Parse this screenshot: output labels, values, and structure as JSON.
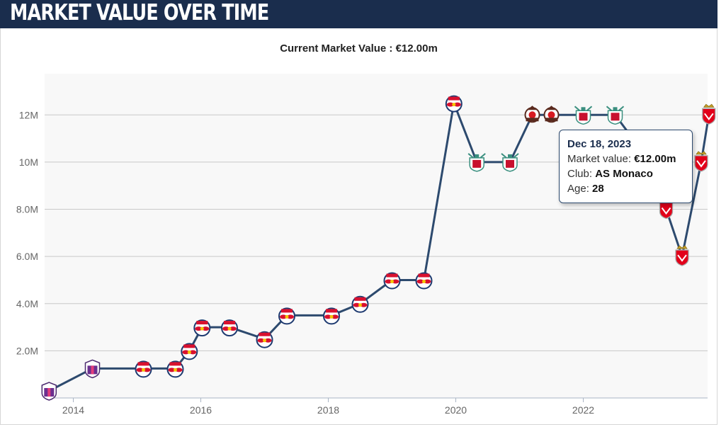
{
  "header": {
    "title": "MARKET VALUE OVER TIME"
  },
  "subtitle": "Current Market Value : €12.00m",
  "colors": {
    "header_bg": "#1a2d4d",
    "line": "#2d4a6e",
    "plot_bg": "#f8f8f8",
    "grid": "#c9c9c9"
  },
  "tooltip": {
    "date": "Dec 18, 2023",
    "market_value_label": "Market value: ",
    "market_value": "€12.00m",
    "club_label": "Club: ",
    "club": "AS Monaco",
    "age_label": "Age: ",
    "age": "28"
  },
  "chart_data": {
    "type": "line",
    "title": "",
    "xlabel": "",
    "ylabel": "",
    "xlim": [
      2013.55,
      2023.95
    ],
    "ylim": [
      0,
      13.75
    ],
    "x_ticks": [
      2014,
      2016,
      2018,
      2020,
      2022
    ],
    "x_tick_labels": [
      "2014",
      "2016",
      "2018",
      "2020",
      "2022"
    ],
    "y_ticks": [
      2,
      4,
      6,
      8,
      10,
      12
    ],
    "y_tick_labels": [
      "2.0M",
      "4.0M",
      "6.0M",
      "8.0M",
      "10M",
      "12M"
    ],
    "grid": "horizontal",
    "series": [
      {
        "values_unit": "€ millions",
        "points": [
          {
            "x": 2013.62,
            "y": 0.3,
            "club": "Cerezo Osaka",
            "badge": "cerezo-badge-icon"
          },
          {
            "x": 2014.3,
            "y": 1.25,
            "club": "Cerezo Osaka",
            "badge": "cerezo-badge-icon"
          },
          {
            "x": 2015.1,
            "y": 1.25,
            "club": "Red Bull Salzburg",
            "badge": "salzburg-badge-icon"
          },
          {
            "x": 2015.6,
            "y": 1.25,
            "club": "Red Bull Salzburg",
            "badge": "salzburg-badge-icon"
          },
          {
            "x": 2015.82,
            "y": 2.0,
            "club": "Red Bull Salzburg",
            "badge": "salzburg-badge-icon"
          },
          {
            "x": 2016.02,
            "y": 3.0,
            "club": "Red Bull Salzburg",
            "badge": "salzburg-badge-icon"
          },
          {
            "x": 2016.45,
            "y": 3.0,
            "club": "Red Bull Salzburg",
            "badge": "salzburg-badge-icon"
          },
          {
            "x": 2017.0,
            "y": 2.5,
            "club": "Red Bull Salzburg",
            "badge": "salzburg-badge-icon"
          },
          {
            "x": 2017.35,
            "y": 3.5,
            "club": "Red Bull Salzburg",
            "badge": "salzburg-badge-icon"
          },
          {
            "x": 2018.05,
            "y": 3.5,
            "club": "Red Bull Salzburg",
            "badge": "salzburg-badge-icon"
          },
          {
            "x": 2018.5,
            "y": 4.0,
            "club": "Red Bull Salzburg",
            "badge": "salzburg-badge-icon"
          },
          {
            "x": 2019.0,
            "y": 5.0,
            "club": "Red Bull Salzburg",
            "badge": "salzburg-badge-icon"
          },
          {
            "x": 2019.5,
            "y": 5.0,
            "club": "Red Bull Salzburg",
            "badge": "salzburg-badge-icon"
          },
          {
            "x": 2019.97,
            "y": 12.5,
            "club": "Red Bull Salzburg",
            "badge": "salzburg-badge-icon"
          },
          {
            "x": 2020.33,
            "y": 10.0,
            "club": "Liverpool FC",
            "badge": "liverpool-badge-icon"
          },
          {
            "x": 2020.85,
            "y": 10.0,
            "club": "Liverpool FC",
            "badge": "liverpool-badge-icon"
          },
          {
            "x": 2021.2,
            "y": 12.0,
            "club": "Southampton FC",
            "badge": "southampton-badge-icon"
          },
          {
            "x": 2021.5,
            "y": 12.0,
            "club": "Southampton FC",
            "badge": "southampton-badge-icon"
          },
          {
            "x": 2022.0,
            "y": 12.0,
            "club": "Liverpool FC",
            "badge": "liverpool-badge-icon"
          },
          {
            "x": 2022.5,
            "y": 12.0,
            "club": "Liverpool FC",
            "badge": "liverpool-badge-icon"
          },
          {
            "x": 2023.05,
            "y": 10.0,
            "club": "AS Monaco",
            "badge": "monaco-badge-icon"
          },
          {
            "x": 2023.3,
            "y": 8.0,
            "club": "AS Monaco",
            "badge": "monaco-badge-icon"
          },
          {
            "x": 2023.55,
            "y": 6.0,
            "club": "AS Monaco",
            "badge": "monaco-badge-icon"
          },
          {
            "x": 2023.85,
            "y": 10.0,
            "club": "AS Monaco",
            "badge": "monaco-badge-icon"
          },
          {
            "x": 2023.97,
            "y": 12.0,
            "club": "AS Monaco",
            "badge": "monaco-badge-icon"
          }
        ]
      }
    ]
  }
}
